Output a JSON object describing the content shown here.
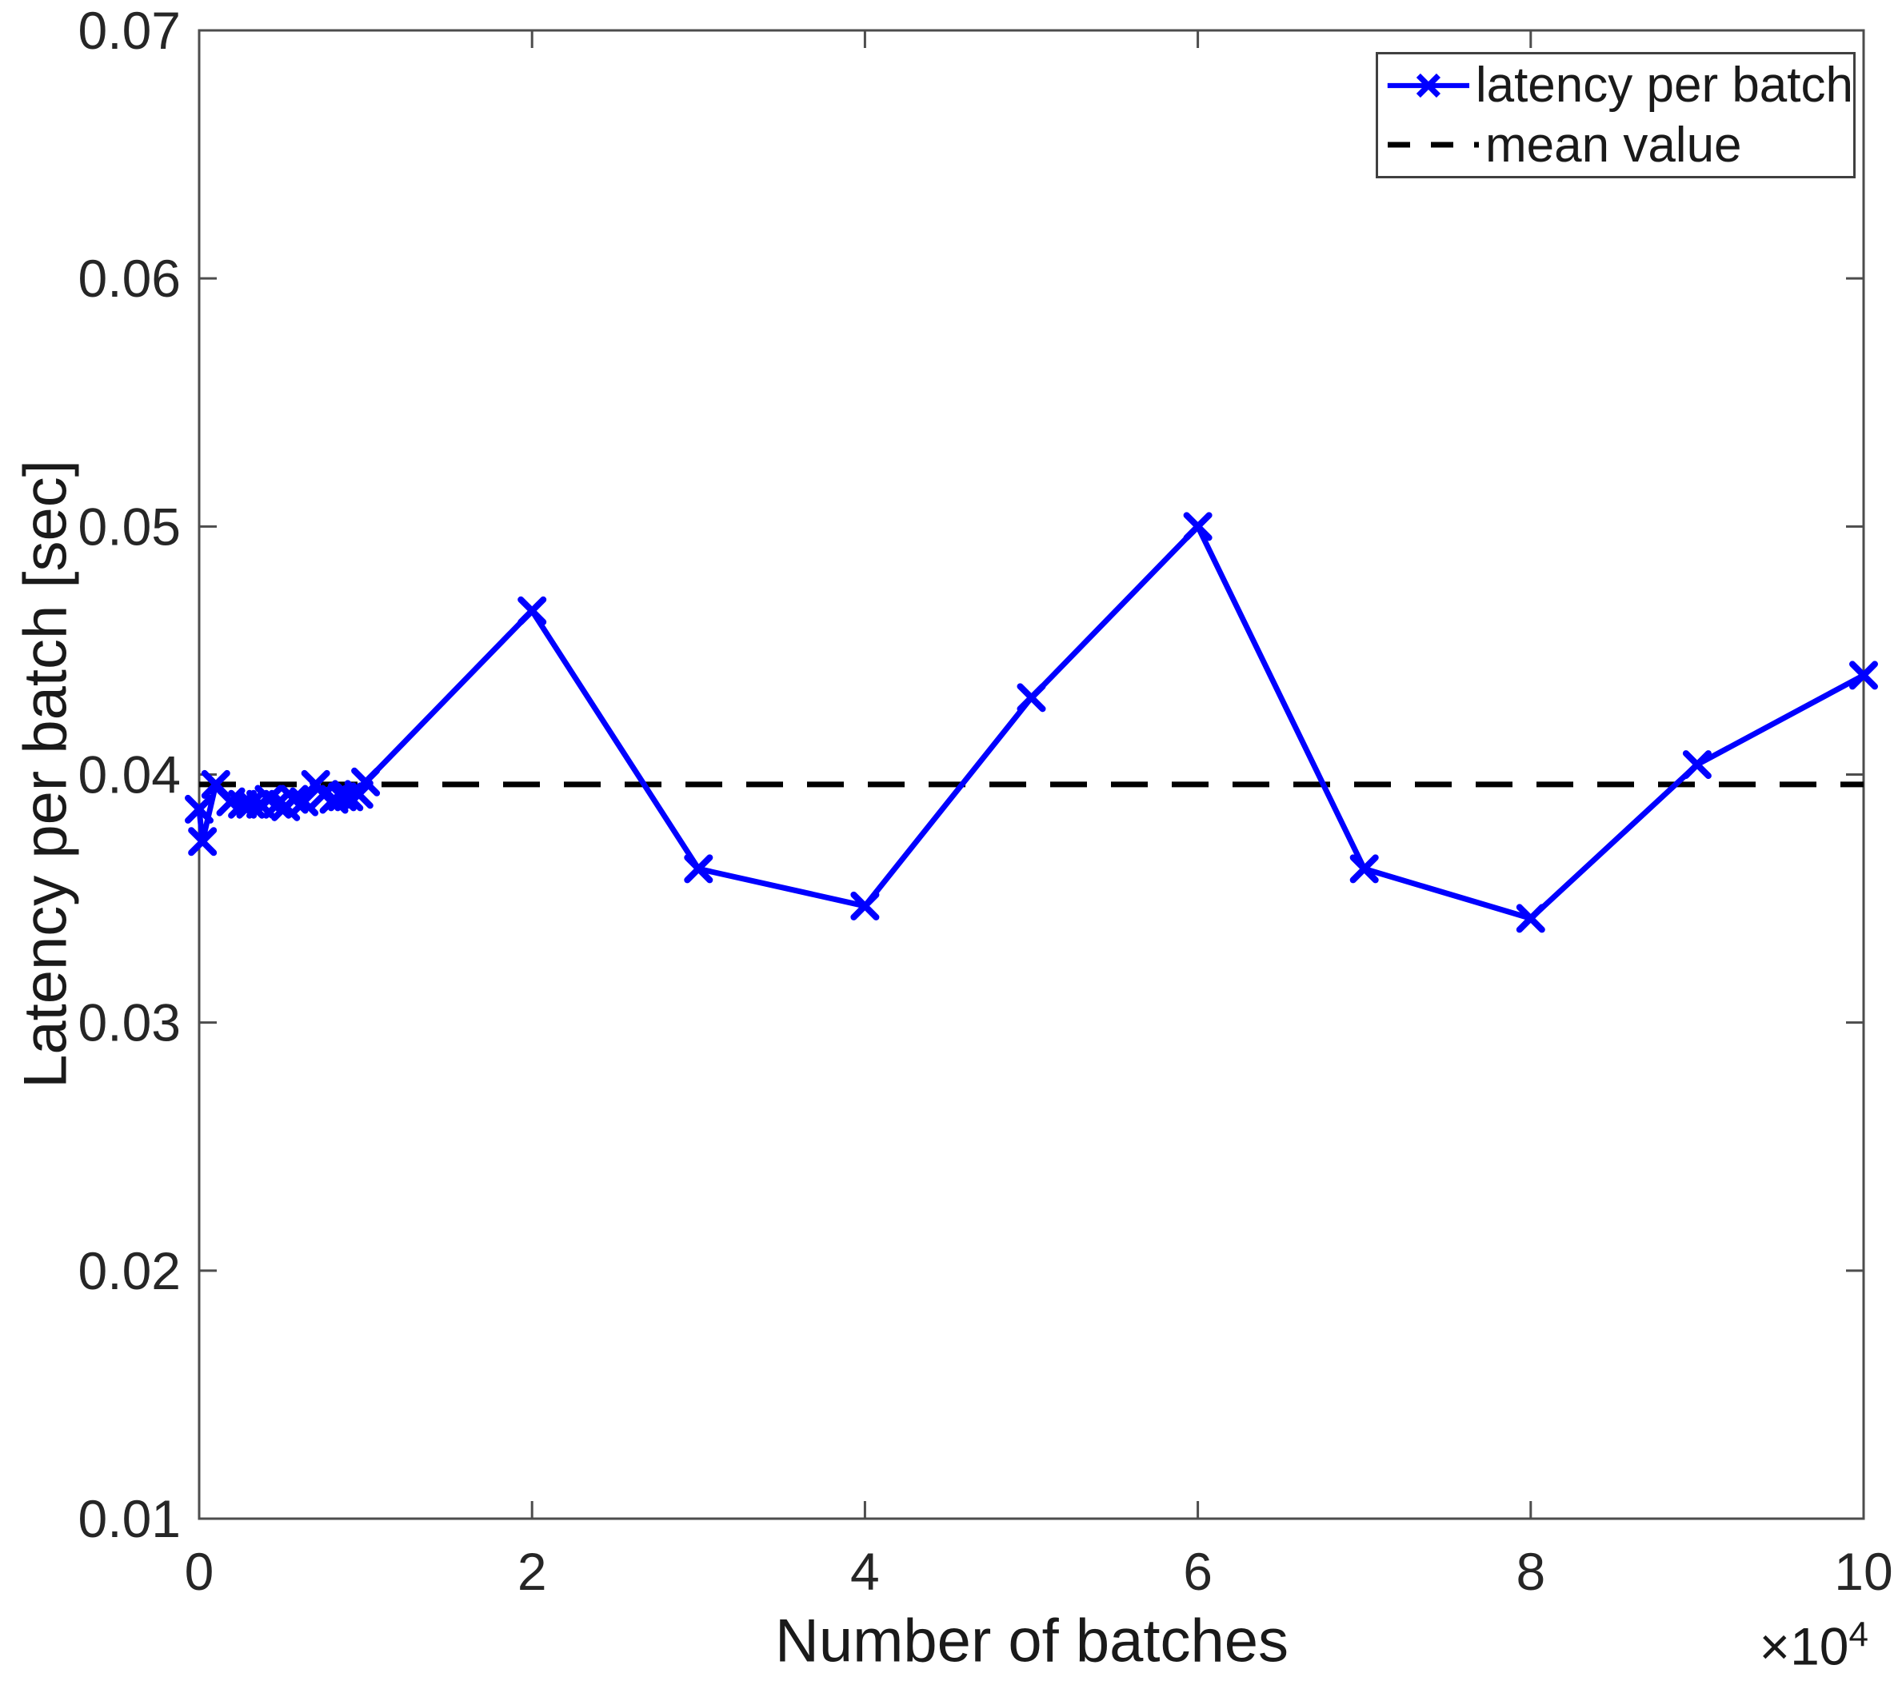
{
  "figure": {
    "background": "#ffffff",
    "axes_color": "#4d4d4d",
    "tick_label_color": "#262626"
  },
  "chart_data": {
    "type": "line",
    "title": "",
    "xlabel": "Number of batches",
    "ylabel": "Latency per batch [sec]",
    "x_axis_offset": {
      "base": "×10",
      "exponent": "4"
    },
    "x_unit": "1e4 batches",
    "xlim": [
      0,
      10
    ],
    "ylim": [
      0.01,
      0.07
    ],
    "x_ticks": [
      0,
      2,
      4,
      6,
      8,
      10
    ],
    "x_tick_labels": [
      "0",
      "2",
      "4",
      "6",
      "8",
      "10"
    ],
    "y_ticks": [
      0.01,
      0.02,
      0.03,
      0.04,
      0.05,
      0.06,
      0.07
    ],
    "y_tick_labels": [
      "0.01",
      "0.02",
      "0.03",
      "0.04",
      "0.05",
      "0.06",
      "0.07"
    ],
    "grid": false,
    "legend_position": "top-right",
    "series": [
      {
        "name": "latency per batch",
        "color": "#0000ff",
        "style": "solid",
        "marker": "x",
        "points": [
          [
            0.0,
            0.0386
          ],
          [
            0.02,
            0.0373
          ],
          [
            0.1,
            0.0396
          ],
          [
            0.19,
            0.0389
          ],
          [
            0.26,
            0.0388
          ],
          [
            0.31,
            0.0388
          ],
          [
            0.37,
            0.0388
          ],
          [
            0.42,
            0.039
          ],
          [
            0.47,
            0.0388
          ],
          [
            0.52,
            0.0387
          ],
          [
            0.57,
            0.039
          ],
          [
            0.63,
            0.0389
          ],
          [
            0.7,
            0.0396
          ],
          [
            0.75,
            0.0392
          ],
          [
            0.81,
            0.039
          ],
          [
            0.86,
            0.0391
          ],
          [
            0.9,
            0.0391
          ],
          [
            0.96,
            0.0392
          ],
          [
            1.0,
            0.0397
          ],
          [
            2.0,
            0.0466
          ],
          [
            3.0,
            0.0362
          ],
          [
            4.0,
            0.0347
          ],
          [
            5.0,
            0.0431
          ],
          [
            6.0,
            0.05
          ],
          [
            7.0,
            0.0362
          ],
          [
            8.0,
            0.0342
          ],
          [
            9.0,
            0.0404
          ],
          [
            10.0,
            0.044
          ]
        ]
      },
      {
        "name": "mean value",
        "color": "#000000",
        "style": "dashed",
        "value": 0.0396
      }
    ]
  }
}
